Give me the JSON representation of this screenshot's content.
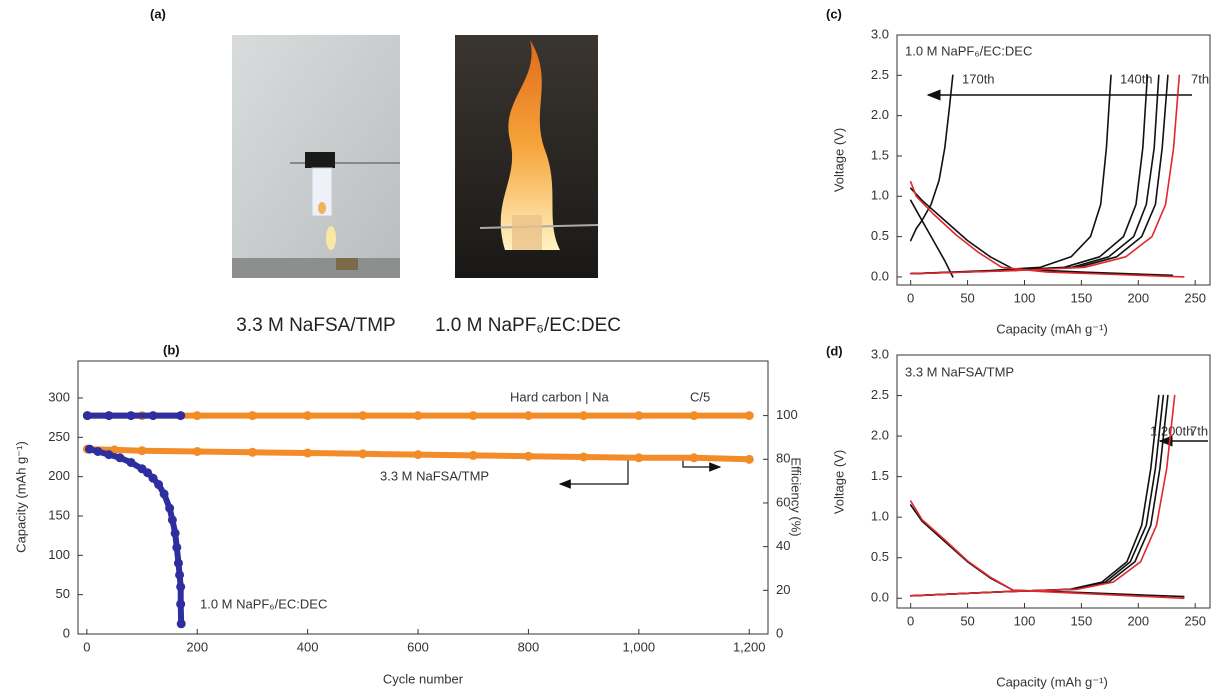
{
  "panel_labels": [
    "(a)",
    "(b)",
    "(c)",
    "(d)"
  ],
  "photo_captions": [
    "3.3 M NaFSA/TMP",
    "1.0 M NaPF₆/EC:DEC"
  ],
  "chart_data": [
    {
      "type": "line",
      "markers": true,
      "xlabel": "Cycle number",
      "ylabel": "Capacity (mAh g⁻¹)",
      "y2label": "Efficiency (%)",
      "annotations": [
        "Hard carbon | Na",
        "C/5"
      ],
      "xlim": [
        -16,
        1234
      ],
      "xticks": [
        0,
        200,
        400,
        600,
        800,
        {
          "value": 1000,
          "label": "1,000"
        },
        {
          "value": 1200,
          "label": "1,200"
        }
      ],
      "ylim": [
        0,
        347
      ],
      "yticks": [
        0,
        50,
        100,
        150,
        200,
        250,
        300
      ],
      "y2lim": [
        0,
        125
      ],
      "y2ticks": [
        0,
        20,
        40,
        60,
        80,
        100
      ],
      "series": [
        {
          "name": "3.3 M NaFSA/TMP",
          "color": "#f28c28",
          "x": [
            1,
            50,
            100,
            200,
            300,
            400,
            500,
            600,
            700,
            800,
            900,
            1000,
            1100,
            1200
          ],
          "values": [
            235,
            234,
            233,
            232,
            231,
            230,
            229,
            228,
            227,
            226,
            225,
            224,
            224,
            222
          ]
        },
        {
          "color": "#f28c28",
          "axis": "y2",
          "x": [
            1,
            100,
            200,
            300,
            400,
            500,
            600,
            700,
            800,
            900,
            1000,
            1100,
            1200
          ],
          "values": [
            100,
            100,
            100,
            100,
            100,
            100,
            100,
            100,
            100,
            100,
            100,
            100,
            100
          ]
        },
        {
          "name": "1.0 M NaPF₆/EC:DEC",
          "color": "#2e2e9e",
          "x": [
            5,
            20,
            40,
            60,
            80,
            100,
            110,
            120,
            130,
            140,
            150,
            155,
            160,
            163,
            166,
            168,
            170,
            170,
            171
          ],
          "values": [
            235,
            232,
            228,
            224,
            218,
            210,
            205,
            198,
            190,
            178,
            160,
            145,
            128,
            110,
            90,
            75,
            60,
            38,
            13
          ]
        },
        {
          "color": "#2e2e9e",
          "axis": "y2",
          "x": [
            1,
            40,
            80,
            120,
            170
          ],
          "values": [
            100,
            100,
            100,
            100,
            100
          ]
        }
      ]
    },
    {
      "type": "line",
      "xlabel": "Capacity (mAh g⁻¹)",
      "ylabel": "Voltage (V)",
      "annotations": [
        "1.0 M NaPF₆/EC:DEC"
      ],
      "xlim": [
        -12,
        263
      ],
      "xticks": [
        0,
        50,
        100,
        150,
        200,
        250
      ],
      "ylim": [
        -0.1,
        3.0
      ],
      "yticks": [
        {
          "value": 0,
          "label": "0.0"
        },
        0.5,
        {
          "value": 1,
          "label": "1.0"
        },
        1.5,
        {
          "value": 2,
          "label": "2.0"
        },
        2.5,
        {
          "value": 3,
          "label": "3.0"
        }
      ],
      "series": [
        {
          "color": "#111111",
          "x": [
            0,
            10,
            30,
            50,
            70,
            90,
            150,
            230
          ],
          "values": [
            1.1,
            0.95,
            0.7,
            0.45,
            0.25,
            0.1,
            0.06,
            0.02
          ]
        },
        {
          "name": "170th",
          "color": "#111111",
          "x": [
            0,
            10,
            20,
            30,
            37,
            null,
            0,
            5,
            10,
            18,
            25,
            30,
            34,
            37
          ],
          "values": [
            0.95,
            0.7,
            0.45,
            0.2,
            0,
            null,
            0.45,
            0.6,
            0.7,
            0.9,
            1.2,
            1.6,
            2.1,
            2.5
          ]
        },
        {
          "name": "140th",
          "color": "#111111",
          "x": [
            0,
            70,
            114,
            141,
            158,
            167,
            172,
            176
          ],
          "values": [
            0.04,
            0.08,
            0.12,
            0.25,
            0.5,
            0.9,
            1.6,
            2.5
          ]
        },
        {
          "color": "#111111",
          "x": [
            0,
            83,
            135,
            166,
            187,
            198,
            204,
            208
          ],
          "values": [
            0.04,
            0.08,
            0.12,
            0.25,
            0.5,
            0.9,
            1.6,
            2.5
          ]
        },
        {
          "color": "#111111",
          "x": [
            0,
            87,
            142,
            174,
            196,
            207,
            214,
            218
          ],
          "values": [
            0.04,
            0.08,
            0.12,
            0.25,
            0.5,
            0.9,
            1.6,
            2.5
          ]
        },
        {
          "color": "#111111",
          "x": [
            0,
            90,
            147,
            181,
            203,
            215,
            221,
            226
          ],
          "values": [
            0.04,
            0.08,
            0.12,
            0.25,
            0.5,
            0.9,
            1.6,
            2.5
          ]
        },
        {
          "name": "7th",
          "color": "#e0282e",
          "x": [
            0,
            5,
            20,
            40,
            60,
            80,
            120,
            180,
            240,
            null,
            0,
            94,
            153,
            189,
            212,
            224,
            231,
            236
          ],
          "values": [
            1.18,
            1.0,
            0.78,
            0.52,
            0.3,
            0.12,
            0.06,
            0.03,
            0.0,
            null,
            0.04,
            0.08,
            0.12,
            0.25,
            0.5,
            0.9,
            1.6,
            2.5
          ]
        }
      ]
    },
    {
      "type": "line",
      "xlabel": "Capacity (mAh g⁻¹)",
      "ylabel": "Voltage (V)",
      "annotations": [
        "3.3 M NaFSA/TMP"
      ],
      "xlim": [
        -12,
        263
      ],
      "xticks": [
        0,
        50,
        100,
        150,
        200,
        250
      ],
      "ylim": [
        -0.12,
        3.0
      ],
      "yticks": [
        {
          "value": 0,
          "label": "0.0"
        },
        0.5,
        {
          "value": 1,
          "label": "1.0"
        },
        1.5,
        {
          "value": 2,
          "label": "2.0"
        },
        2.5,
        {
          "value": 3,
          "label": "3.0"
        }
      ],
      "series": [
        {
          "color": "#111111",
          "x": [
            0,
            10,
            30,
            50,
            70,
            90,
            150,
            240
          ],
          "values": [
            1.15,
            0.95,
            0.7,
            0.45,
            0.25,
            0.1,
            0.07,
            0.02
          ]
        },
        {
          "name": "1,200th",
          "color": "#111111",
          "x": [
            0,
            80,
            140,
            168,
            190,
            203,
            211,
            218
          ],
          "values": [
            0.03,
            0.08,
            0.11,
            0.2,
            0.45,
            0.9,
            1.6,
            2.5
          ]
        },
        {
          "color": "#111111",
          "x": [
            0,
            80,
            142,
            171,
            193,
            207,
            215,
            222
          ],
          "values": [
            0.03,
            0.08,
            0.11,
            0.2,
            0.45,
            0.9,
            1.6,
            2.5
          ]
        },
        {
          "color": "#111111",
          "x": [
            0,
            80,
            144,
            174,
            197,
            211,
            219,
            226
          ],
          "values": [
            0.03,
            0.08,
            0.11,
            0.2,
            0.45,
            0.9,
            1.6,
            2.5
          ]
        },
        {
          "name": "7th",
          "color": "#e0282e",
          "x": [
            0,
            10,
            30,
            50,
            70,
            90,
            150,
            240,
            null,
            0,
            80,
            146,
            178,
            202,
            216,
            225,
            232
          ],
          "values": [
            1.2,
            0.97,
            0.72,
            0.46,
            0.26,
            0.1,
            0.06,
            0.0,
            null,
            0.03,
            0.08,
            0.11,
            0.2,
            0.45,
            0.9,
            1.6,
            2.5
          ]
        }
      ]
    }
  ]
}
